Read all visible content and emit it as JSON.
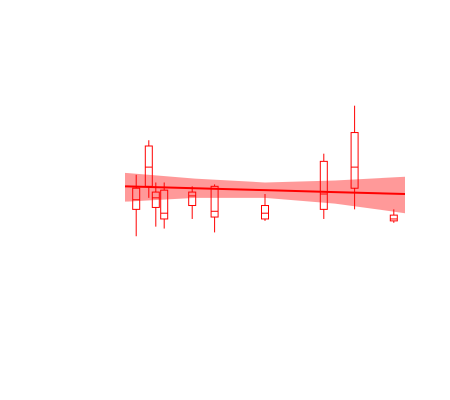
{
  "chart_data": {
    "type": "boxplot",
    "title": "",
    "xlabel": "",
    "ylabel": "",
    "grid": false,
    "legend": "none",
    "axes_visible": false,
    "xlim": [
      0,
      100
    ],
    "ylim": [
      0,
      100
    ],
    "colors": {
      "box": "#ff0000",
      "fit_line": "#ff0000",
      "band": "#ff8080"
    },
    "boxes": [
      {
        "x": 4,
        "min": 28,
        "q1": 42,
        "median": 47,
        "q3": 53,
        "max": 60
      },
      {
        "x": 8.5,
        "min": 48,
        "q1": 54,
        "median": 64,
        "q3": 75,
        "max": 78
      },
      {
        "x": 11,
        "min": 33,
        "q1": 43,
        "median": 48,
        "q3": 51,
        "max": 56
      },
      {
        "x": 14,
        "min": 32,
        "q1": 37,
        "median": 40,
        "q3": 52,
        "max": 56
      },
      {
        "x": 24,
        "min": 37,
        "q1": 44,
        "median": 49,
        "q3": 51,
        "max": 54
      },
      {
        "x": 32,
        "min": 30,
        "q1": 38,
        "median": 41,
        "q3": 54,
        "max": 55
      },
      {
        "x": 50,
        "min": 36,
        "q1": 37,
        "median": 40,
        "q3": 44,
        "max": 50
      },
      {
        "x": 71,
        "min": 37,
        "q1": 42,
        "median": 50,
        "q3": 67,
        "max": 71
      },
      {
        "x": 82,
        "min": 42,
        "q1": 53,
        "median": 64,
        "q3": 82,
        "max": 96
      },
      {
        "x": 96,
        "min": 35,
        "q1": 36,
        "median": 37,
        "q3": 39,
        "max": 42
      }
    ],
    "fit": {
      "x": [
        0,
        25,
        50,
        75,
        100
      ],
      "y": [
        54,
        53,
        52,
        51,
        50
      ],
      "lower": [
        46,
        48,
        48,
        45,
        40
      ],
      "upper": [
        61,
        58,
        56,
        57,
        59
      ]
    }
  }
}
